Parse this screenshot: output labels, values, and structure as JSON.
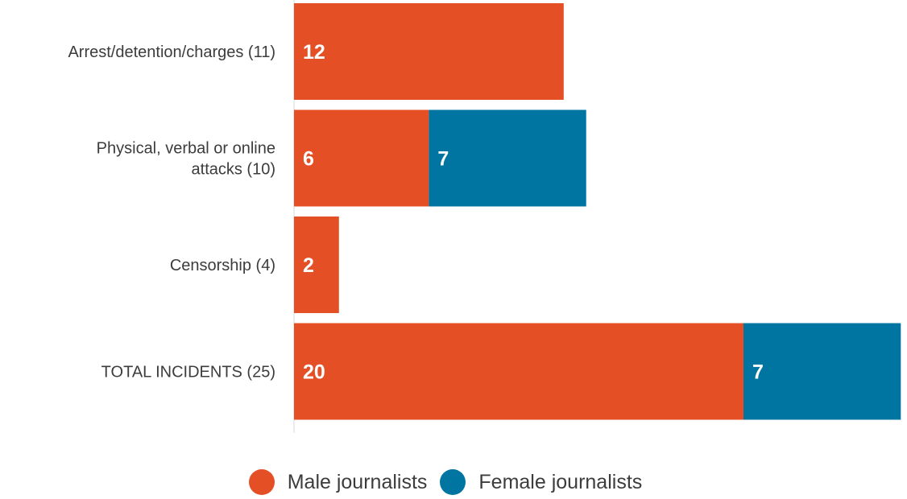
{
  "colors": {
    "male": "#e44f26",
    "female": "#0075a2",
    "axis": "#d9d9d9"
  },
  "legend": {
    "male_label": "Male journalists",
    "female_label": "Female journalists"
  },
  "chart_data": {
    "type": "bar",
    "orientation": "horizontal",
    "stacked": true,
    "categories": [
      [
        "Arrest/detention/charges (11)"
      ],
      [
        "Physical, verbal or online",
        "attacks (10)"
      ],
      [
        "Censorship (4)"
      ],
      [
        "TOTAL INCIDENTS (25)"
      ]
    ],
    "series": [
      {
        "name": "Male journalists",
        "color": "#e44f26",
        "values": [
          12,
          6,
          2,
          20
        ]
      },
      {
        "name": "Female journalists",
        "color": "#0075a2",
        "values": [
          0,
          7,
          0,
          7
        ]
      }
    ],
    "xlim": [
      0,
      27
    ],
    "grid": false,
    "legend_position": "bottom"
  }
}
